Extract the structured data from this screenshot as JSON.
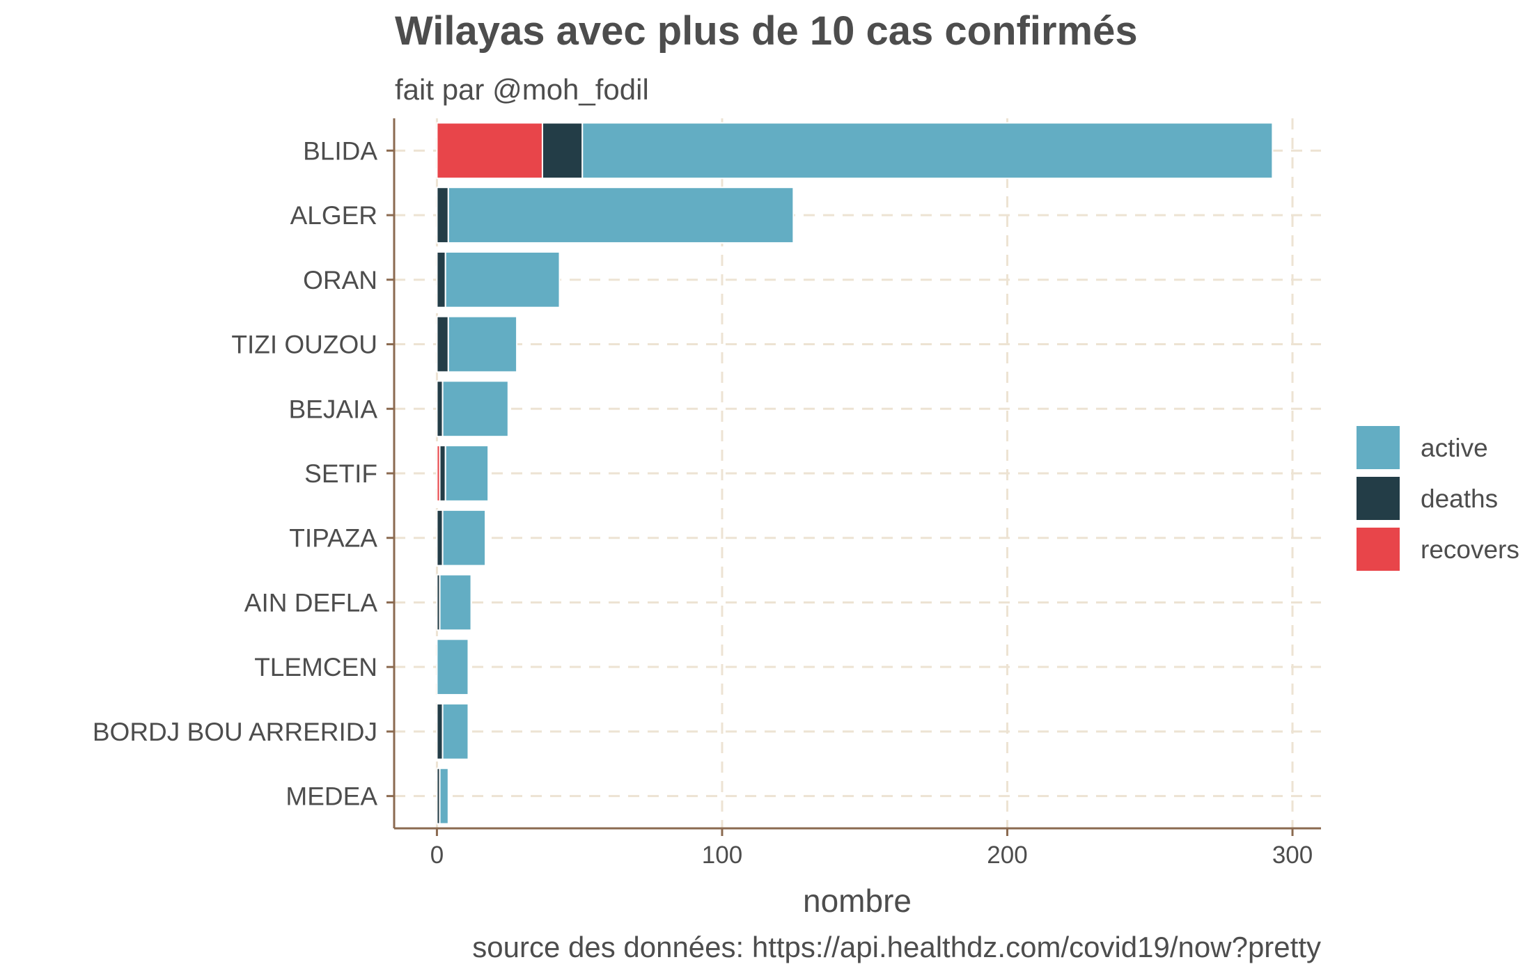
{
  "chart_data": {
    "type": "bar",
    "orientation": "horizontal",
    "stacked": true,
    "title": "Wilayas avec plus de 10 cas confirmés",
    "subtitle": "fait par @moh_fodil",
    "xlabel": "nombre",
    "ylabel": "",
    "caption": "source des données: https://api.healthdz.com/covid19/now?pretty",
    "xlim": [
      -15,
      310
    ],
    "x_ticks": [
      0,
      100,
      200,
      300
    ],
    "grid": true,
    "legend_position": "right",
    "categories": [
      "BLIDA",
      "ALGER",
      "ORAN",
      "TIZI OUZOU",
      "BEJAIA",
      "SETIF",
      "TIPAZA",
      "AIN DEFLA",
      "TLEMCEN",
      "BORDJ BOU ARRERIDJ",
      "MEDEA"
    ],
    "series": [
      {
        "name": "recovers",
        "color": "#E8454A",
        "values": [
          37,
          0,
          0,
          0,
          0,
          1,
          0,
          0,
          0,
          0,
          0
        ]
      },
      {
        "name": "deaths",
        "color": "#233D47",
        "values": [
          14,
          4,
          3,
          4,
          2,
          2,
          2,
          1,
          0,
          2,
          1
        ]
      },
      {
        "name": "active",
        "color": "#63ADC3",
        "values": [
          242,
          121,
          40,
          24,
          23,
          15,
          15,
          11,
          11,
          9,
          3
        ]
      }
    ],
    "legend_order": [
      "active",
      "deaths",
      "recovers"
    ],
    "colors": {
      "axis_line": "#8B6A50",
      "grid": "#EDE3D3",
      "text": "#4d4d4d"
    }
  }
}
